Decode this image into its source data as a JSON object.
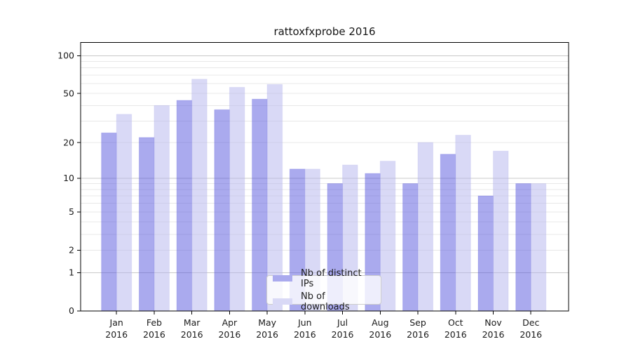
{
  "chart_data": {
    "type": "bar",
    "title": "rattoxfxprobe 2016",
    "xlabel": "",
    "ylabel": "",
    "categories": [
      "Jan 2016",
      "Feb 2016",
      "Mar 2016",
      "Apr 2016",
      "May 2016",
      "Jun 2016",
      "Jul 2016",
      "Aug 2016",
      "Sep 2016",
      "Oct 2016",
      "Nov 2016",
      "Dec 2016"
    ],
    "series": [
      {
        "name": "Nb of distinct IPs",
        "color": "#aaaaee",
        "values": [
          24,
          22,
          44,
          37,
          45,
          12,
          9,
          11,
          9,
          16,
          7,
          9
        ]
      },
      {
        "name": "Nb of downloads",
        "color": "#d9d9f6",
        "values": [
          34,
          40,
          65,
          56,
          59,
          12,
          13,
          14,
          20,
          23,
          17,
          9
        ]
      }
    ],
    "yscale": "log1p",
    "ylim": [
      0,
      128
    ],
    "yticks": [
      0,
      1,
      2,
      5,
      10,
      20,
      50,
      100
    ],
    "major_gridlines": [
      1,
      10,
      100
    ],
    "minor_gridlines": [
      2,
      3,
      4,
      5,
      6,
      7,
      8,
      9,
      20,
      30,
      40,
      50,
      60,
      70,
      80,
      90
    ],
    "grid": true,
    "legend": {
      "position": "lower center"
    }
  },
  "colors": {
    "bar_distinct_ips": "#aaaaee",
    "bar_downloads": "#d9d9f6",
    "grid_major": "#c9c9c9",
    "grid_minor": "#e8e8e8",
    "axis": "#000000",
    "text": "#1a1a1a"
  }
}
